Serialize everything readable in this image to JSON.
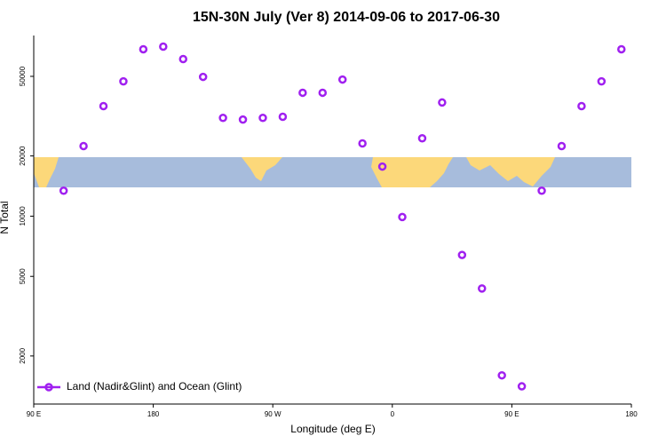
{
  "chart_data": {
    "type": "scatter",
    "title": "15N-30N July (Ver 8)   2014-09-06 to 2017-06-30",
    "x_label": "Longitude (deg E)",
    "y_label": "N Total",
    "x": [
      112.5,
      127.5,
      142.5,
      157.5,
      172.5,
      187.5,
      202.5,
      217.5,
      232.5,
      247.5,
      262.5,
      277.5,
      292.5,
      307.5,
      322.5,
      337.5,
      352.5,
      367.5,
      382.5,
      397.5,
      412.5,
      427.5,
      442.5,
      457.5,
      472.5,
      487.5,
      502.5,
      517.5,
      532.5
    ],
    "series": [
      {
        "name": "Land (Nadir&Glint) and Ocean (Glint)",
        "color": "#a020f0",
        "values": [
          13400,
          22400,
          35500,
          47200,
          68300,
          70400,
          61000,
          49700,
          31000,
          30400,
          31000,
          31400,
          41400,
          41400,
          48200,
          23100,
          17700,
          9900,
          24500,
          37000,
          6400,
          4350,
          1600,
          1410,
          13400,
          22400,
          35500,
          47200,
          68300
        ]
      }
    ],
    "xlim": [
      90,
      540
    ],
    "xticks": [
      {
        "value": 90,
        "label": "90 E"
      },
      180,
      {
        "value": 270,
        "label": "90 W"
      },
      {
        "value": 360,
        "label": "0"
      },
      {
        "value": 450,
        "label": "90 E"
      },
      {
        "value": 540,
        "label": "180"
      }
    ],
    "ylim": [
      1150,
      80000
    ],
    "yticks": [
      2000,
      5000,
      10000,
      20000,
      50000
    ],
    "log_y": true,
    "legend": "bottom-left"
  }
}
